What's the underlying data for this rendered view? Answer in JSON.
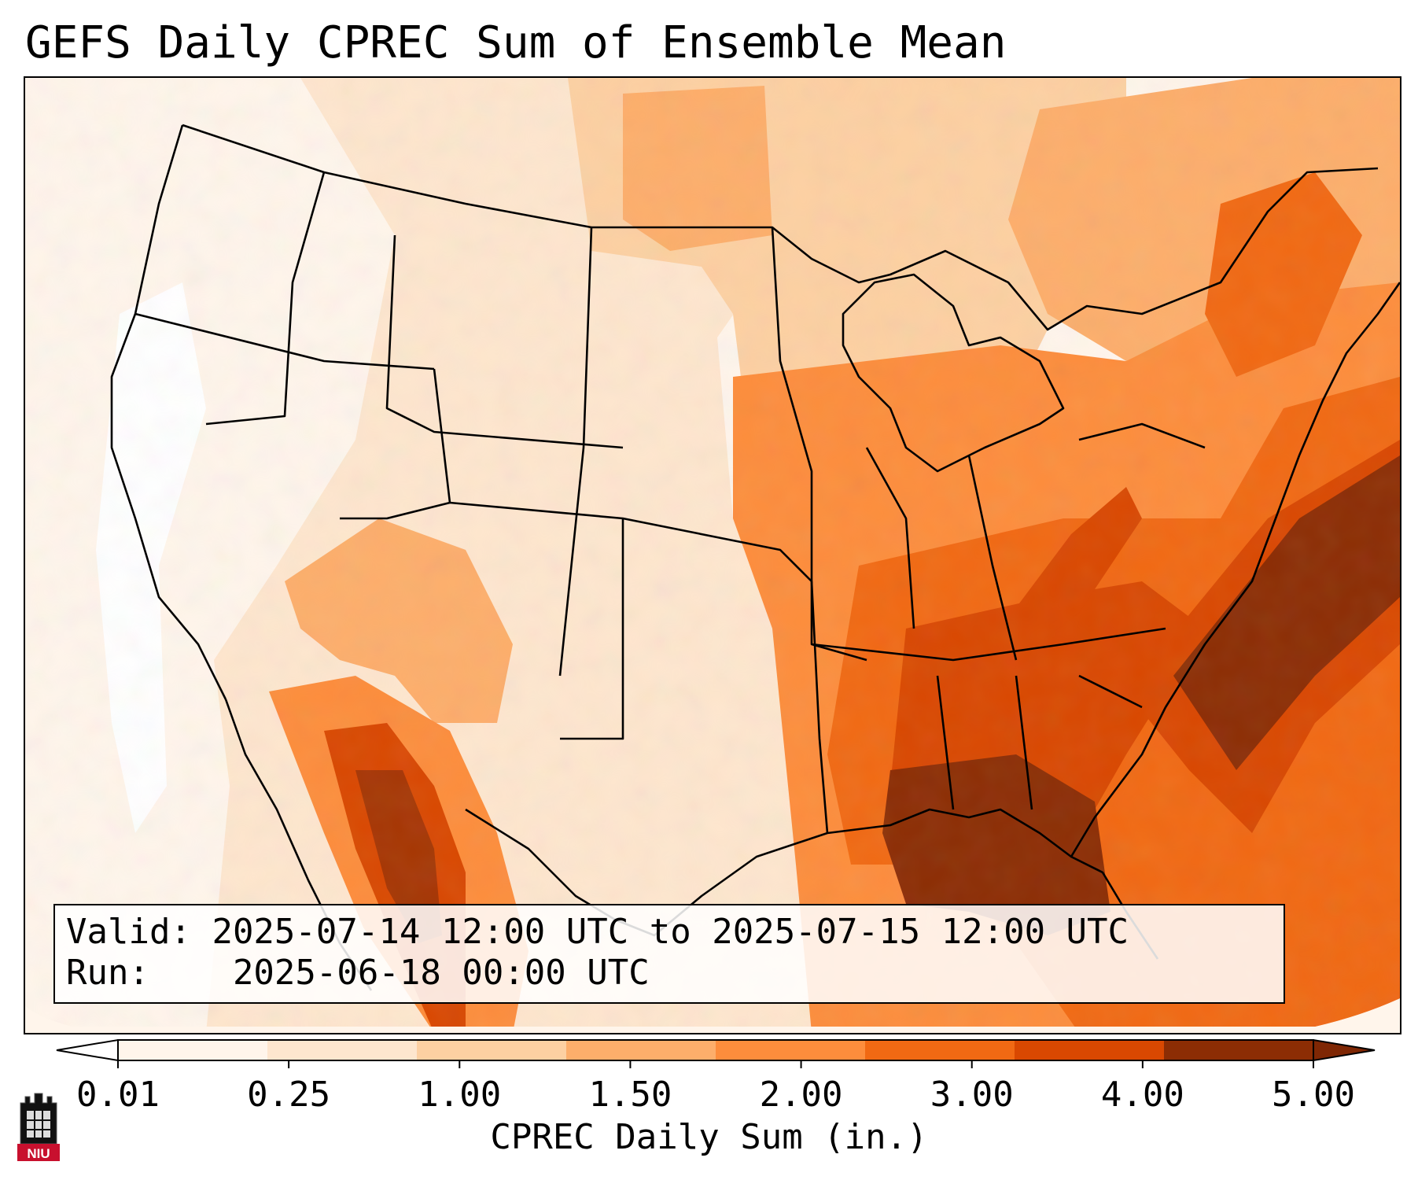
{
  "title": "GEFS Daily CPREC Sum of Ensemble Mean",
  "info_box": {
    "valid_label": "Valid:",
    "valid_value": "2025-07-14 12:00 UTC to 2025-07-15 12:00 UTC",
    "run_label": "Run:",
    "run_value": "2025-06-18 00:00 UTC"
  },
  "colorbar": {
    "label": "CPREC Daily Sum (in.)",
    "ticks": [
      "0.01",
      "0.25",
      "1.00",
      "1.50",
      "2.00",
      "3.00",
      "4.00",
      "5.00"
    ],
    "colors": [
      "#fff5eb",
      "#fee6ce",
      "#fdd0a2",
      "#fdae6b",
      "#fd8d3c",
      "#f16913",
      "#d94801",
      "#8c2d04"
    ],
    "under_color": "#ffffff",
    "over_color": "#7f2704",
    "extend": "both"
  },
  "logo": {
    "text": "NIU",
    "colors": {
      "red": "#c8102e",
      "black": "#000000"
    }
  },
  "map": {
    "projection": "lambert-conformal",
    "region": "contiguous United States",
    "variable": "CPREC daily sum of ensemble mean",
    "units": "in.",
    "overlays": [
      "coastlines",
      "state-borders",
      "country-borders"
    ]
  }
}
